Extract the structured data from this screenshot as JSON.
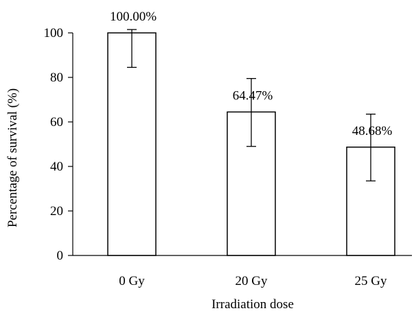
{
  "chart_data": {
    "type": "bar",
    "title": "",
    "xlabel": "Irradiation dose",
    "ylabel": "Percentage of survival (%)",
    "categories": [
      "0 Gy",
      "20 Gy",
      "25 Gy"
    ],
    "values": [
      100,
      64.47,
      48.68
    ],
    "error_low": [
      84.5,
      49,
      33.5
    ],
    "error_high": [
      101.5,
      79.5,
      63.5
    ],
    "data_labels": [
      "100.00%",
      "64.47%",
      "48.68%"
    ],
    "ylim": [
      0,
      100
    ],
    "yticks": [
      0,
      20,
      40,
      60,
      80,
      100
    ],
    "ytick_labels": [
      "0",
      "20",
      "40",
      "60",
      "80",
      "100"
    ],
    "grid": false,
    "bar_fill": "#ffffff",
    "bar_stroke": "#000000"
  }
}
